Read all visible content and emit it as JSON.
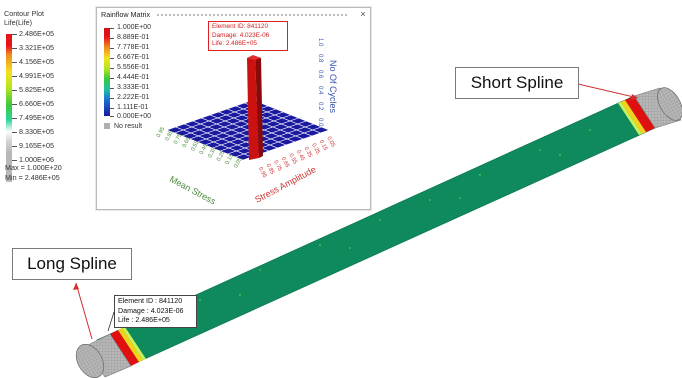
{
  "contour_legend": {
    "title_line1": "Contour Plot",
    "title_line2": "Life(Life)",
    "levels": [
      "2.486E+05",
      "3.321E+05",
      "4.156E+05",
      "4.991E+05",
      "5.825E+05",
      "6.660E+05",
      "7.495E+05",
      "8.330E+05",
      "9.165E+05",
      "1.000E+06"
    ],
    "max_text": "Max = 1.000E+20",
    "min_text": "Min = 2.486E+05"
  },
  "rainflow_window": {
    "title": "Rainflow Matrix",
    "close_label": "×",
    "legend_levels": [
      "1.000E+00",
      "8.889E-01",
      "7.778E-01",
      "6.667E-01",
      "5.556E-01",
      "4.444E-01",
      "3.333E-01",
      "2.222E-01",
      "1.111E-01",
      "0.000E+00"
    ],
    "no_result_label": "No result",
    "tooltip": {
      "element": "Element ID: 841120",
      "damage": "Damage: 4.023E-06",
      "life": "Life: 2.486E+05"
    },
    "axis_mean_stress": "Mean Stress",
    "axis_stress_amplitude": "Stress Amplitude",
    "axis_cycles": "No Of Cycles",
    "mean_ticks": [
      "0.95",
      "0.85",
      "0.75",
      "0.65",
      "0.55",
      "0.45",
      "0.35",
      "0.25",
      "0.15",
      "0.05"
    ],
    "amp_ticks": [
      "0.95",
      "0.85",
      "0.75",
      "0.65",
      "0.55",
      "0.45",
      "0.35",
      "0.25",
      "0.15",
      "0.05"
    ],
    "cycle_ticks": [
      "1.0",
      "0.8",
      "0.6",
      "0.4",
      "0.2",
      "0.0"
    ],
    "colors": {
      "grid_blue": "#1a1aa0",
      "bar_red": "#cc1111",
      "mean_green": "#4a8a3a",
      "amp_red": "#cc3333",
      "cycles_blue": "#3a56b0"
    }
  },
  "callouts": {
    "short_spline": "Short Spline",
    "long_spline": "Long Spline"
  },
  "info_tooltip": {
    "element": "Element ID : 841120",
    "damage": "Damage :  4.023E-06",
    "life": "Life :  2.486E+05"
  },
  "colors": {
    "shaft_green": "#27c88c",
    "spline_grey": "#a9a9a9",
    "hotspot_red": "#e01010",
    "arrow_red": "#d03030"
  }
}
